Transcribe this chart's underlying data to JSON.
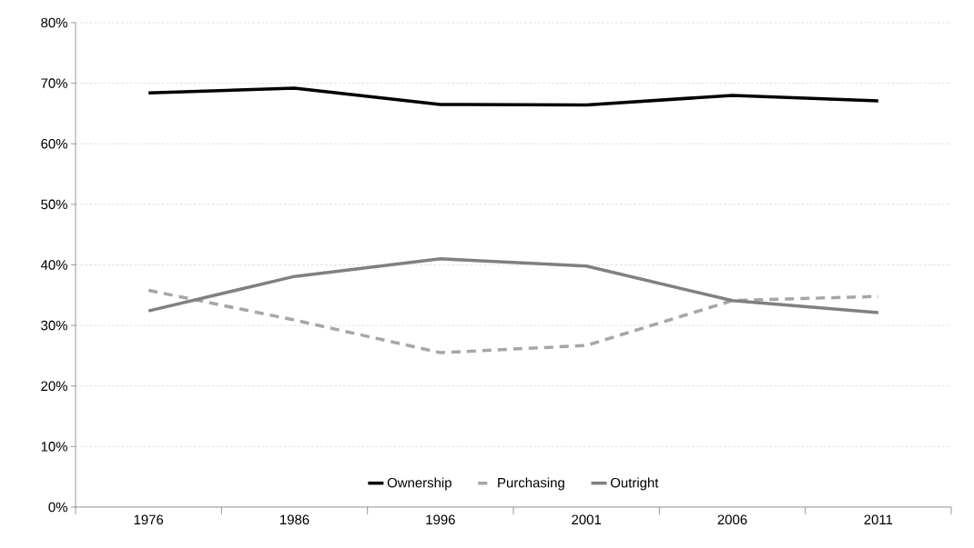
{
  "chart_data": {
    "type": "line",
    "categories": [
      "1976",
      "1986",
      "1996",
      "2001",
      "2006",
      "2011"
    ],
    "series": [
      {
        "name": "Ownership",
        "color": "#000000",
        "line_style": "solid",
        "values": [
          68.4,
          69.2,
          66.5,
          66.4,
          68.0,
          67.1
        ]
      },
      {
        "name": "Purchasing",
        "color": "#a6a6a6",
        "line_style": "dashed",
        "values": [
          35.8,
          30.9,
          25.5,
          26.7,
          34.1,
          34.8
        ]
      },
      {
        "name": "Outright",
        "color": "#808080",
        "line_style": "solid",
        "values": [
          32.4,
          38.1,
          41.0,
          39.8,
          34.1,
          32.1
        ]
      }
    ],
    "ylim": [
      0,
      80
    ],
    "yticks": [
      {
        "value": 0,
        "label": "0%"
      },
      {
        "value": 10,
        "label": "10%"
      },
      {
        "value": 20,
        "label": "20%"
      },
      {
        "value": 30,
        "label": "30%"
      },
      {
        "value": 40,
        "label": "40%"
      },
      {
        "value": 50,
        "label": "50%"
      },
      {
        "value": 60,
        "label": "60%"
      },
      {
        "value": 70,
        "label": "70%"
      },
      {
        "value": 80,
        "label": "80%"
      }
    ],
    "grid": "y",
    "legend": "bottom"
  }
}
